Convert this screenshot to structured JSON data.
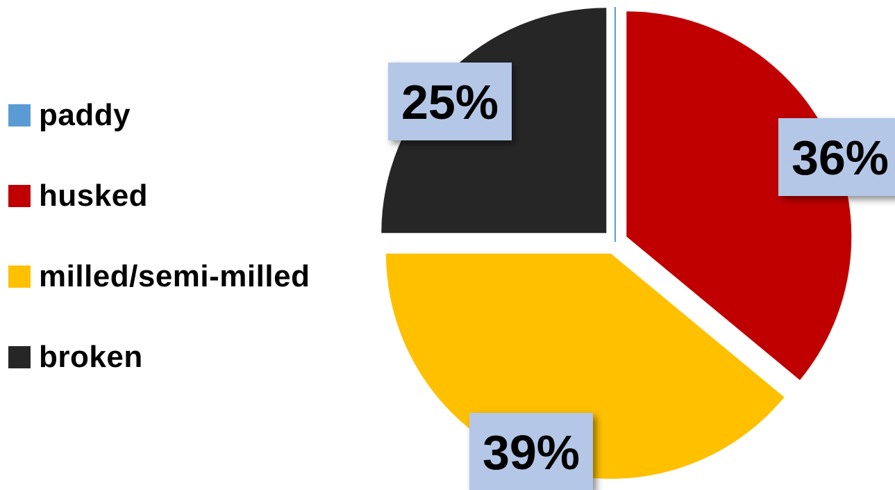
{
  "chart_data": {
    "type": "pie",
    "categories": [
      "paddy",
      "husked",
      "milled/semi-milled",
      "broken"
    ],
    "values": [
      0,
      36,
      39,
      25
    ],
    "data_labels": [
      "",
      "36%",
      "39%",
      "25%"
    ],
    "colors": [
      "#5b9bd5",
      "#c00000",
      "#ffc000",
      "#262626"
    ],
    "label_box_color": "#b4c7e7",
    "legend_position": "left",
    "exploded": true
  }
}
